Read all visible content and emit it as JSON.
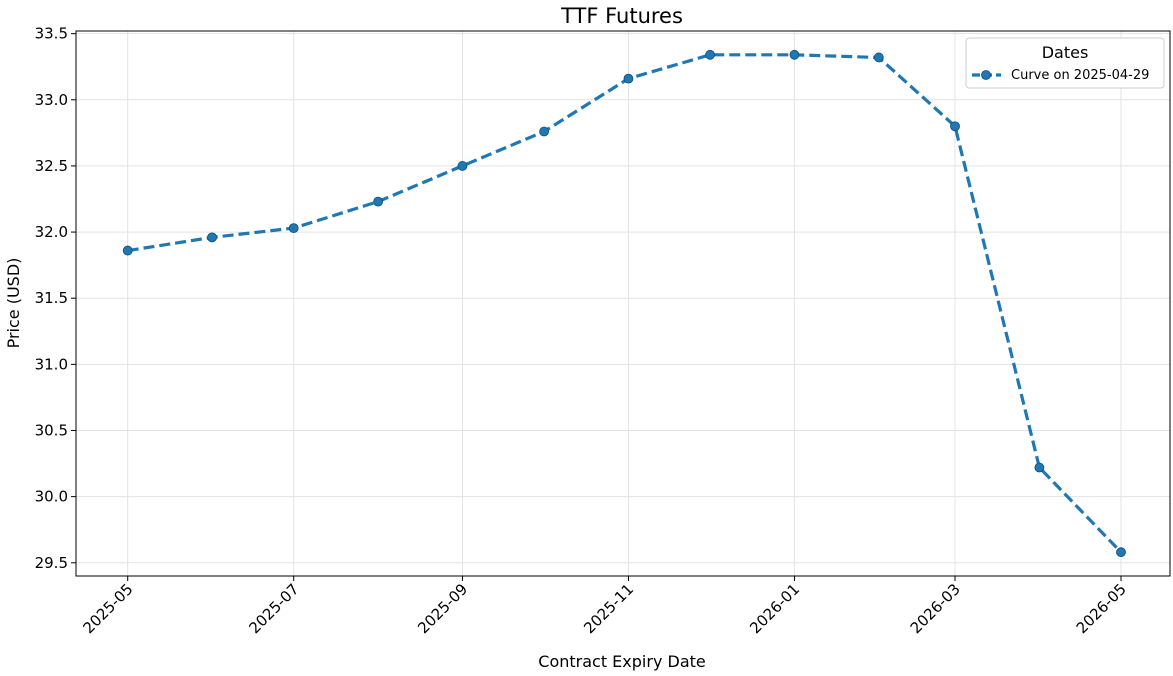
{
  "chart_data": {
    "type": "line",
    "title": "TTF Futures",
    "xlabel": "Contract Expiry Date",
    "ylabel": "Price (USD)",
    "xlim": [
      "2025-04-12",
      "2026-05-19"
    ],
    "ylim": [
      29.4,
      33.52
    ],
    "xticks": [
      "2025-05",
      "2025-07",
      "2025-09",
      "2025-11",
      "2026-01",
      "2026-03",
      "2026-05"
    ],
    "yticks": [
      "29.5",
      "30.0",
      "30.5",
      "31.0",
      "31.5",
      "32.0",
      "32.5",
      "33.0",
      "33.5"
    ],
    "grid": true,
    "legend": {
      "title": "Dates",
      "position": "top-right"
    },
    "series": [
      {
        "name": "Curve on 2025-04-29",
        "color": "#1f77b4",
        "style": "dashed",
        "marker": "circle",
        "x": [
          "2025-05-01",
          "2025-06-01",
          "2025-07-01",
          "2025-08-01",
          "2025-09-01",
          "2025-10-01",
          "2025-11-01",
          "2025-12-01",
          "2026-01-01",
          "2026-02-01",
          "2026-03-01",
          "2026-04-01",
          "2026-05-01"
        ],
        "y": [
          31.86,
          31.96,
          32.03,
          32.23,
          32.5,
          32.76,
          33.16,
          33.34,
          33.34,
          33.32,
          32.8,
          30.22,
          29.58
        ]
      }
    ]
  }
}
